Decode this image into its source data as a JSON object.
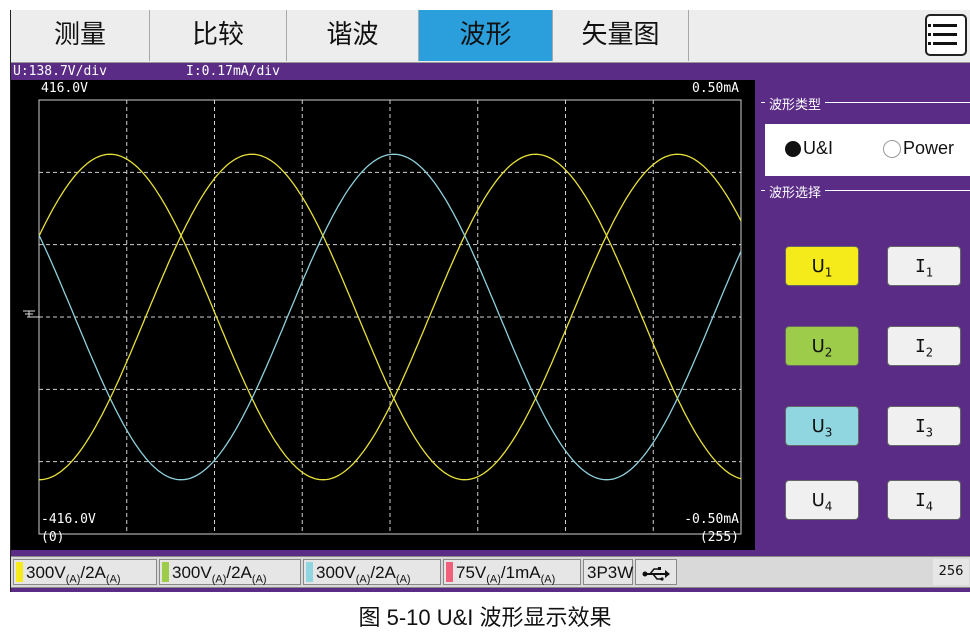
{
  "tabs": [
    {
      "label": "测量",
      "active": false
    },
    {
      "label": "比较",
      "active": false
    },
    {
      "label": "谐波",
      "active": false
    },
    {
      "label": "波形",
      "active": true
    },
    {
      "label": "矢量图",
      "active": false
    }
  ],
  "menu_icon": "list-menu-icon",
  "info": {
    "u_scale": "U:138.7V/div",
    "i_scale": "I:0.17mA/div"
  },
  "scope": {
    "top_left": "416.0V",
    "top_right": "0.50mA",
    "bottom_left": "-416.0V",
    "bottom_right": "-0.50mA",
    "x_start": "(0)",
    "x_end": "(255)",
    "ground_icon": "ground-marker-icon"
  },
  "chart_data": {
    "type": "line",
    "x": [
      0,
      255
    ],
    "ylim": [
      -416.0,
      416.0
    ],
    "grid": true,
    "series": [
      {
        "color": "#e8e03a",
        "amplitude": 0.75,
        "phase_deg": 0
      },
      {
        "color": "#8fd0dc",
        "amplitude": 0.75,
        "phase_deg": 120
      },
      {
        "color": "#e8e03a",
        "amplitude": 0.75,
        "phase_deg": 240
      }
    ]
  },
  "panel": {
    "wave_type_title": "波形类型",
    "radio_ui": "U&I",
    "radio_power": "Power",
    "wave_select_title": "波形选择",
    "buttons": [
      {
        "u": "U",
        "u_sub": "1",
        "i": "I",
        "i_sub": "1",
        "u_color": "#f5eb1a"
      },
      {
        "u": "U",
        "u_sub": "2",
        "i": "I",
        "i_sub": "2",
        "u_color": "#9ccc4a"
      },
      {
        "u": "U",
        "u_sub": "3",
        "i": "I",
        "i_sub": "3",
        "u_color": "#8fd6e0"
      },
      {
        "u": "U",
        "u_sub": "4",
        "i": "I",
        "i_sub": "4",
        "u_color": "#f0f0f0"
      }
    ]
  },
  "bottom": {
    "chips": [
      {
        "main": "300V",
        "s1": "(A)",
        "mid": "/2A",
        "s2": "(A)",
        "color": "#f5eb1a"
      },
      {
        "main": "300V",
        "s1": "(A)",
        "mid": "/2A",
        "s2": "(A)",
        "color": "#9ccc4a"
      },
      {
        "main": "300V",
        "s1": "(A)",
        "mid": "/2A",
        "s2": "(A)",
        "color": "#8fd6e0"
      },
      {
        "main": "75V",
        "s1": "(A)",
        "mid": "/1mA",
        "s2": "(A)",
        "color": "#f0607a"
      }
    ],
    "wiring": "3P3W",
    "usb_icon": "usb-icon",
    "counter": "256"
  },
  "caption": "图 5-10    U&I 波形显示效果"
}
